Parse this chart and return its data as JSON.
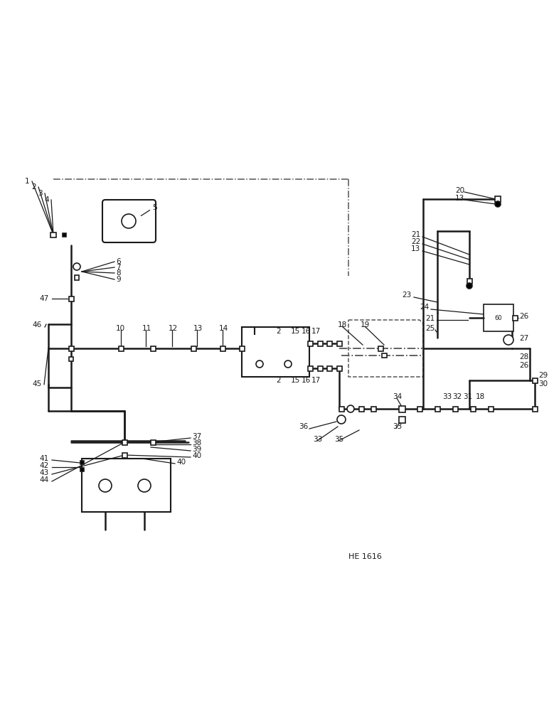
{
  "bg_color": "#ffffff",
  "line_color": "#1a1a1a",
  "label_color": "#111111",
  "fig_width": 7.72,
  "fig_height": 10.0,
  "watermark": "HE 1616",
  "lw_main": 1.8,
  "lw_thin": 0.9,
  "lw_dash": 1.1
}
